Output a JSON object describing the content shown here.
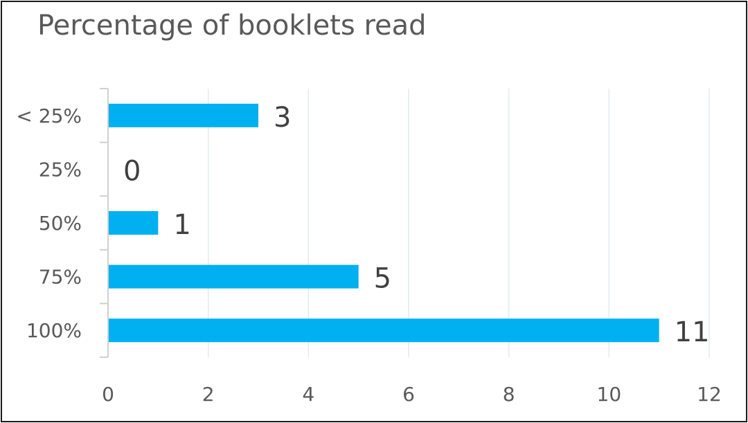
{
  "chart_data": {
    "type": "bar",
    "orientation": "horizontal",
    "title": "Percentage of booklets read",
    "categories": [
      "< 25%",
      "25%",
      "50%",
      "75%",
      "100%"
    ],
    "values": [
      3,
      0,
      1,
      5,
      11
    ],
    "data_labels": [
      "3",
      "0",
      "1",
      "5",
      "11"
    ],
    "xlim": [
      0,
      12
    ],
    "x_ticks": [
      0,
      2,
      4,
      6,
      8,
      10,
      12
    ],
    "x_tick_labels": [
      "0",
      "2",
      "4",
      "6",
      "8",
      "10",
      "12"
    ],
    "grid": true,
    "legend": false,
    "colors": {
      "bar": "#00b0f0",
      "grid": "#e3eaee",
      "axis": "#d0d0d0",
      "text": "#595959"
    }
  }
}
